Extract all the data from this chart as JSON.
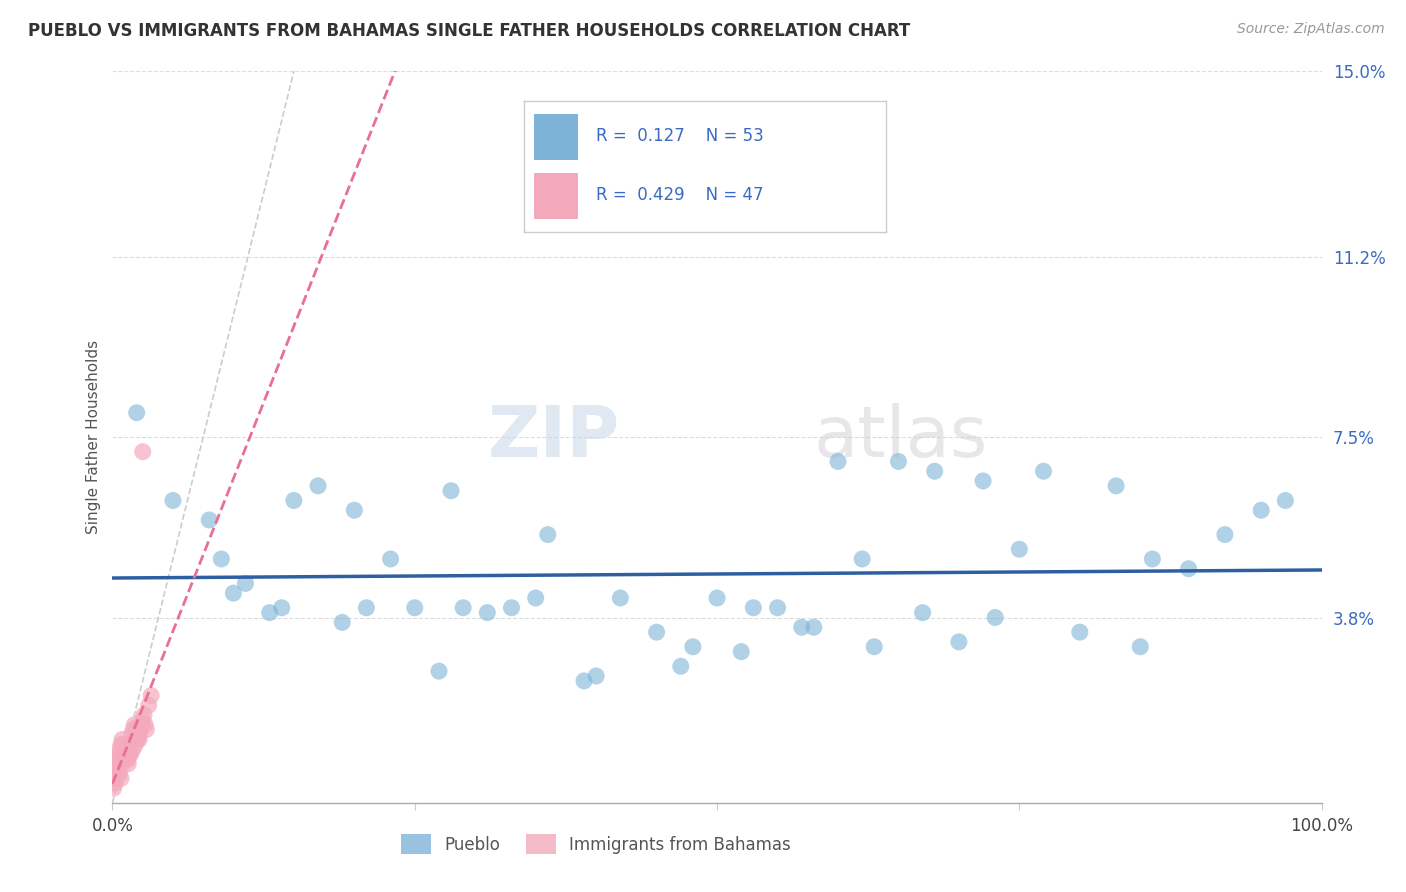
{
  "title": "PUEBLO VS IMMIGRANTS FROM BAHAMAS SINGLE FATHER HOUSEHOLDS CORRELATION CHART",
  "source": "Source: ZipAtlas.com",
  "ylabel": "Single Father Households",
  "xlim": [
    0,
    1.0
  ],
  "ylim": [
    0,
    0.15
  ],
  "ytick_vals": [
    0.0,
    0.038,
    0.075,
    0.112,
    0.15
  ],
  "ytick_labels": [
    "",
    "3.8%",
    "7.5%",
    "11.2%",
    "15.0%"
  ],
  "xtick_vals": [
    0.0,
    0.25,
    0.5,
    0.75,
    1.0
  ],
  "xtick_labels": [
    "0.0%",
    "",
    "",
    "",
    "100.0%"
  ],
  "pueblo_R": "0.127",
  "pueblo_N": "53",
  "bahamas_R": "0.429",
  "bahamas_N": "47",
  "pueblo_color": "#7EB3D8",
  "bahamas_color": "#F4AABC",
  "trendline_pueblo_color": "#2E5FA3",
  "trendline_bahamas_color": "#E87090",
  "diagonal_color": "#CCCCCC",
  "grid_color": "#DDDDDD",
  "watermark_zip": "ZIP",
  "watermark_atlas": "atlas",
  "legend_blue_label": "Pueblo",
  "legend_pink_label": "Immigrants from Bahamas",
  "pueblo_x": [
    0.02,
    0.05,
    0.08,
    0.1,
    0.13,
    0.15,
    0.17,
    0.19,
    0.21,
    0.23,
    0.25,
    0.27,
    0.29,
    0.31,
    0.33,
    0.36,
    0.39,
    0.42,
    0.45,
    0.48,
    0.5,
    0.52,
    0.55,
    0.57,
    0.6,
    0.63,
    0.65,
    0.67,
    0.7,
    0.72,
    0.09,
    0.11,
    0.14,
    0.2,
    0.28,
    0.35,
    0.4,
    0.47,
    0.53,
    0.58,
    0.62,
    0.68,
    0.73,
    0.77,
    0.8,
    0.83,
    0.86,
    0.89,
    0.92,
    0.95,
    0.97,
    0.75,
    0.85
  ],
  "pueblo_y": [
    0.08,
    0.062,
    0.058,
    0.043,
    0.039,
    0.062,
    0.065,
    0.037,
    0.04,
    0.05,
    0.04,
    0.027,
    0.04,
    0.039,
    0.04,
    0.055,
    0.025,
    0.042,
    0.035,
    0.032,
    0.042,
    0.031,
    0.04,
    0.036,
    0.07,
    0.032,
    0.07,
    0.039,
    0.033,
    0.066,
    0.05,
    0.045,
    0.04,
    0.06,
    0.064,
    0.042,
    0.026,
    0.028,
    0.04,
    0.036,
    0.05,
    0.068,
    0.038,
    0.068,
    0.035,
    0.065,
    0.05,
    0.048,
    0.055,
    0.06,
    0.062,
    0.052,
    0.032
  ],
  "bahamas_x": [
    0.001,
    0.002,
    0.003,
    0.004,
    0.005,
    0.006,
    0.007,
    0.008,
    0.009,
    0.01,
    0.011,
    0.012,
    0.013,
    0.014,
    0.015,
    0.016,
    0.017,
    0.018,
    0.019,
    0.02,
    0.021,
    0.022,
    0.023,
    0.024,
    0.025,
    0.026,
    0.027,
    0.028,
    0.03,
    0.032,
    0.001,
    0.002,
    0.003,
    0.004,
    0.005,
    0.006,
    0.007,
    0.008,
    0.009,
    0.01,
    0.011,
    0.013,
    0.015,
    0.017,
    0.019,
    0.022,
    0.025
  ],
  "bahamas_y": [
    0.005,
    0.007,
    0.008,
    0.009,
    0.01,
    0.011,
    0.012,
    0.013,
    0.012,
    0.011,
    0.01,
    0.009,
    0.008,
    0.01,
    0.012,
    0.014,
    0.015,
    0.016,
    0.015,
    0.014,
    0.013,
    0.014,
    0.015,
    0.016,
    0.017,
    0.018,
    0.016,
    0.015,
    0.02,
    0.022,
    0.003,
    0.004,
    0.005,
    0.006,
    0.007,
    0.006,
    0.005,
    0.008,
    0.009,
    0.01,
    0.011,
    0.009,
    0.01,
    0.011,
    0.012,
    0.013,
    0.072
  ]
}
